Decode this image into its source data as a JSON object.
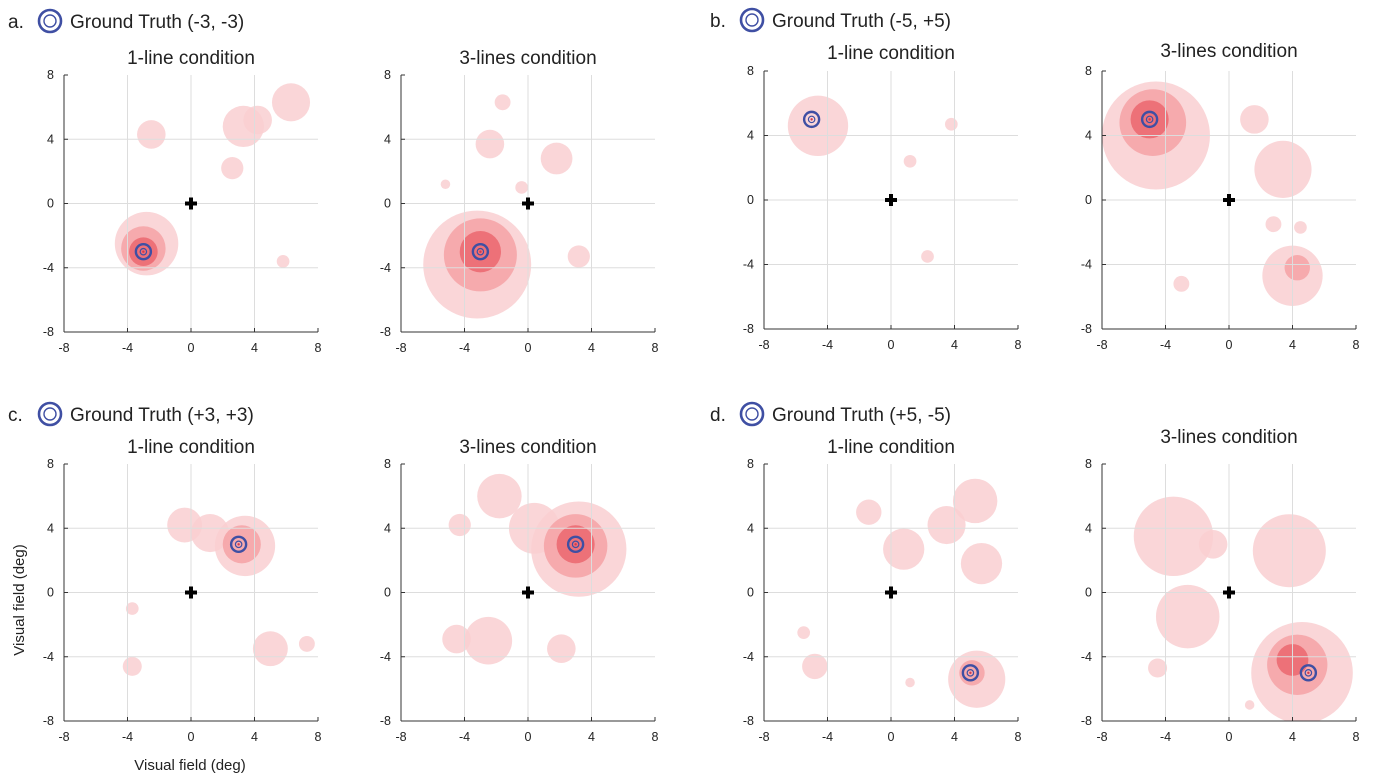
{
  "figure": {
    "xlabel": "Visual field (deg)",
    "ylabel": "Visual field (deg)"
  },
  "chart_data": [
    {
      "type": "heatmap",
      "panel": "a.",
      "header": "Ground Truth (-3, -3)",
      "title": "1-line condition",
      "ground_truth": [
        -3,
        -3
      ],
      "xlim": [
        -8,
        8
      ],
      "ylim": [
        -8,
        8
      ],
      "xticks": [
        "-8",
        "-4",
        "0",
        "4",
        "8"
      ],
      "yticks": [
        "8",
        "4",
        "0",
        "-4",
        "-8"
      ],
      "grid": true,
      "blobs": [
        {
          "x": -2.8,
          "y": -2.5,
          "r": 2.0,
          "level": 1
        },
        {
          "x": -3.0,
          "y": -2.8,
          "r": 1.4,
          "level": 2
        },
        {
          "x": -3.0,
          "y": -3.0,
          "r": 0.9,
          "level": 3
        },
        {
          "x": -2.5,
          "y": 4.3,
          "r": 0.9,
          "level": 1
        },
        {
          "x": 3.3,
          "y": 4.8,
          "r": 1.3,
          "level": 1
        },
        {
          "x": 6.3,
          "y": 6.3,
          "r": 1.2,
          "level": 1
        },
        {
          "x": 4.2,
          "y": 5.2,
          "r": 0.9,
          "level": 1
        },
        {
          "x": 2.6,
          "y": 2.2,
          "r": 0.7,
          "level": 1
        },
        {
          "x": 5.8,
          "y": -3.6,
          "r": 0.4,
          "level": 1
        }
      ]
    },
    {
      "type": "heatmap",
      "panel": "",
      "header": "",
      "title": "3-lines condition",
      "ground_truth": [
        -3,
        -3
      ],
      "xlim": [
        -8,
        8
      ],
      "ylim": [
        -8,
        8
      ],
      "xticks": [
        "-8",
        "-4",
        "0",
        "4",
        "8"
      ],
      "yticks": [
        "8",
        "4",
        "0",
        "-4",
        "-8"
      ],
      "grid": true,
      "blobs": [
        {
          "x": -3.2,
          "y": -3.8,
          "r": 3.4,
          "level": 1
        },
        {
          "x": -3.0,
          "y": -3.2,
          "r": 2.3,
          "level": 2
        },
        {
          "x": -3.0,
          "y": -3.0,
          "r": 1.3,
          "level": 3
        },
        {
          "x": -2.4,
          "y": 3.7,
          "r": 0.9,
          "level": 1
        },
        {
          "x": 1.8,
          "y": 2.8,
          "r": 1.0,
          "level": 1
        },
        {
          "x": 3.2,
          "y": -3.3,
          "r": 0.7,
          "level": 1
        },
        {
          "x": -1.6,
          "y": 6.3,
          "r": 0.5,
          "level": 1
        },
        {
          "x": -5.2,
          "y": 1.2,
          "r": 0.3,
          "level": 1
        },
        {
          "x": -0.4,
          "y": 1.0,
          "r": 0.4,
          "level": 1
        }
      ]
    },
    {
      "type": "heatmap",
      "panel": "b.",
      "header": "Ground Truth (-5, +5)",
      "title": "1-line condition",
      "ground_truth": [
        -5,
        5
      ],
      "xlim": [
        -8,
        8
      ],
      "ylim": [
        -8,
        8
      ],
      "xticks": [
        "-8",
        "-4",
        "0",
        "4",
        "8"
      ],
      "yticks": [
        "8",
        "4",
        "0",
        "-4",
        "-8"
      ],
      "grid": true,
      "blobs": [
        {
          "x": -4.6,
          "y": 4.6,
          "r": 1.9,
          "level": 1
        },
        {
          "x": 3.8,
          "y": 4.7,
          "r": 0.4,
          "level": 1
        },
        {
          "x": 1.2,
          "y": 2.4,
          "r": 0.4,
          "level": 1
        },
        {
          "x": 2.3,
          "y": -3.5,
          "r": 0.4,
          "level": 1
        }
      ]
    },
    {
      "type": "heatmap",
      "panel": "",
      "header": "",
      "title": "3-lines condition",
      "ground_truth": [
        -5,
        5
      ],
      "xlim": [
        -8,
        8
      ],
      "ylim": [
        -8,
        8
      ],
      "xticks": [
        "-8",
        "-4",
        "0",
        "4",
        "8"
      ],
      "yticks": [
        "8",
        "4",
        "0",
        "-4",
        "-8"
      ],
      "grid": true,
      "blobs": [
        {
          "x": -4.6,
          "y": 4.0,
          "r": 3.4,
          "level": 1
        },
        {
          "x": -4.8,
          "y": 4.8,
          "r": 2.1,
          "level": 2
        },
        {
          "x": -5.0,
          "y": 5.0,
          "r": 1.2,
          "level": 3
        },
        {
          "x": 3.4,
          "y": 1.9,
          "r": 1.8,
          "level": 1
        },
        {
          "x": 1.6,
          "y": 5.0,
          "r": 0.9,
          "level": 1
        },
        {
          "x": 4.0,
          "y": -4.7,
          "r": 1.9,
          "level": 1
        },
        {
          "x": 4.3,
          "y": -4.2,
          "r": 0.8,
          "level": 2
        },
        {
          "x": 2.8,
          "y": -1.5,
          "r": 0.5,
          "level": 1
        },
        {
          "x": 4.5,
          "y": -1.7,
          "r": 0.4,
          "level": 1
        },
        {
          "x": -3.0,
          "y": -5.2,
          "r": 0.5,
          "level": 1
        }
      ]
    },
    {
      "type": "heatmap",
      "panel": "c.",
      "header": "Ground Truth (+3, +3)",
      "title": "1-line condition",
      "ground_truth": [
        3,
        3
      ],
      "xlim": [
        -8,
        8
      ],
      "ylim": [
        -8,
        8
      ],
      "xticks": [
        "-8",
        "-4",
        "0",
        "4",
        "8"
      ],
      "yticks": [
        "8",
        "4",
        "0",
        "-4",
        "-8"
      ],
      "grid": true,
      "blobs": [
        {
          "x": 3.4,
          "y": 2.9,
          "r": 1.9,
          "level": 1
        },
        {
          "x": -0.4,
          "y": 4.2,
          "r": 1.1,
          "level": 1
        },
        {
          "x": 1.2,
          "y": 3.7,
          "r": 1.2,
          "level": 1
        },
        {
          "x": 3.2,
          "y": 3.0,
          "r": 1.2,
          "level": 2
        },
        {
          "x": 5.0,
          "y": -3.5,
          "r": 1.1,
          "level": 1
        },
        {
          "x": 7.3,
          "y": -3.2,
          "r": 0.5,
          "level": 1
        },
        {
          "x": -3.7,
          "y": -4.6,
          "r": 0.6,
          "level": 1
        },
        {
          "x": -3.7,
          "y": -1.0,
          "r": 0.4,
          "level": 1
        }
      ]
    },
    {
      "type": "heatmap",
      "panel": "",
      "header": "",
      "title": "3-lines condition",
      "ground_truth": [
        3,
        3
      ],
      "xlim": [
        -8,
        8
      ],
      "ylim": [
        -8,
        8
      ],
      "xticks": [
        "-8",
        "-4",
        "0",
        "4",
        "8"
      ],
      "yticks": [
        "8",
        "4",
        "0",
        "-4",
        "-8"
      ],
      "grid": true,
      "blobs": [
        {
          "x": 3.2,
          "y": 2.7,
          "r": 3.0,
          "level": 1
        },
        {
          "x": 3.0,
          "y": 2.9,
          "r": 2.0,
          "level": 2
        },
        {
          "x": 3.0,
          "y": 3.0,
          "r": 1.2,
          "level": 3
        },
        {
          "x": 0.4,
          "y": 4.0,
          "r": 1.6,
          "level": 1
        },
        {
          "x": -1.8,
          "y": 6.0,
          "r": 1.4,
          "level": 1
        },
        {
          "x": -4.3,
          "y": 4.2,
          "r": 0.7,
          "level": 1
        },
        {
          "x": -2.5,
          "y": -3.0,
          "r": 1.5,
          "level": 1
        },
        {
          "x": -4.5,
          "y": -2.9,
          "r": 0.9,
          "level": 1
        },
        {
          "x": 2.1,
          "y": -3.5,
          "r": 0.9,
          "level": 1
        }
      ]
    },
    {
      "type": "heatmap",
      "panel": "d.",
      "header": "Ground Truth (+5, -5)",
      "title": "1-line condition",
      "ground_truth": [
        5,
        -5
      ],
      "xlim": [
        -8,
        8
      ],
      "ylim": [
        -8,
        8
      ],
      "xticks": [
        "-8",
        "-4",
        "0",
        "4",
        "8"
      ],
      "yticks": [
        "8",
        "4",
        "0",
        "-4",
        "-8"
      ],
      "grid": true,
      "blobs": [
        {
          "x": 5.4,
          "y": -5.4,
          "r": 1.8,
          "level": 1
        },
        {
          "x": 5.1,
          "y": -5.0,
          "r": 0.8,
          "level": 2
        },
        {
          "x": 5.3,
          "y": 5.7,
          "r": 1.4,
          "level": 1
        },
        {
          "x": 5.7,
          "y": 1.8,
          "r": 1.3,
          "level": 1
        },
        {
          "x": 3.5,
          "y": 4.2,
          "r": 1.2,
          "level": 1
        },
        {
          "x": 0.8,
          "y": 2.7,
          "r": 1.3,
          "level": 1
        },
        {
          "x": -1.4,
          "y": 5.0,
          "r": 0.8,
          "level": 1
        },
        {
          "x": -4.8,
          "y": -4.6,
          "r": 0.8,
          "level": 1
        },
        {
          "x": -5.5,
          "y": -2.5,
          "r": 0.4,
          "level": 1
        },
        {
          "x": 1.2,
          "y": -5.6,
          "r": 0.3,
          "level": 1
        }
      ]
    },
    {
      "type": "heatmap",
      "panel": "",
      "header": "",
      "title": "3-lines condition",
      "ground_truth": [
        5,
        -5
      ],
      "xlim": [
        -8,
        8
      ],
      "ylim": [
        -8,
        8
      ],
      "xticks": [
        "-8",
        "-4",
        "0",
        "4",
        "8"
      ],
      "yticks": [
        "8",
        "4",
        "0",
        "-4",
        "-8"
      ],
      "grid": true,
      "blobs": [
        {
          "x": 4.6,
          "y": -5.0,
          "r": 3.2,
          "level": 1
        },
        {
          "x": 4.3,
          "y": -4.5,
          "r": 1.9,
          "level": 2
        },
        {
          "x": 4.0,
          "y": -4.2,
          "r": 1.0,
          "level": 3
        },
        {
          "x": -3.5,
          "y": 3.5,
          "r": 2.5,
          "level": 1
        },
        {
          "x": 3.8,
          "y": 2.6,
          "r": 2.3,
          "level": 1
        },
        {
          "x": -2.6,
          "y": -1.5,
          "r": 2.0,
          "level": 1
        },
        {
          "x": -1.0,
          "y": 3.0,
          "r": 0.9,
          "level": 1
        },
        {
          "x": -4.5,
          "y": -4.7,
          "r": 0.6,
          "level": 1
        },
        {
          "x": 1.3,
          "y": -7.0,
          "r": 0.3,
          "level": 1
        }
      ]
    }
  ]
}
